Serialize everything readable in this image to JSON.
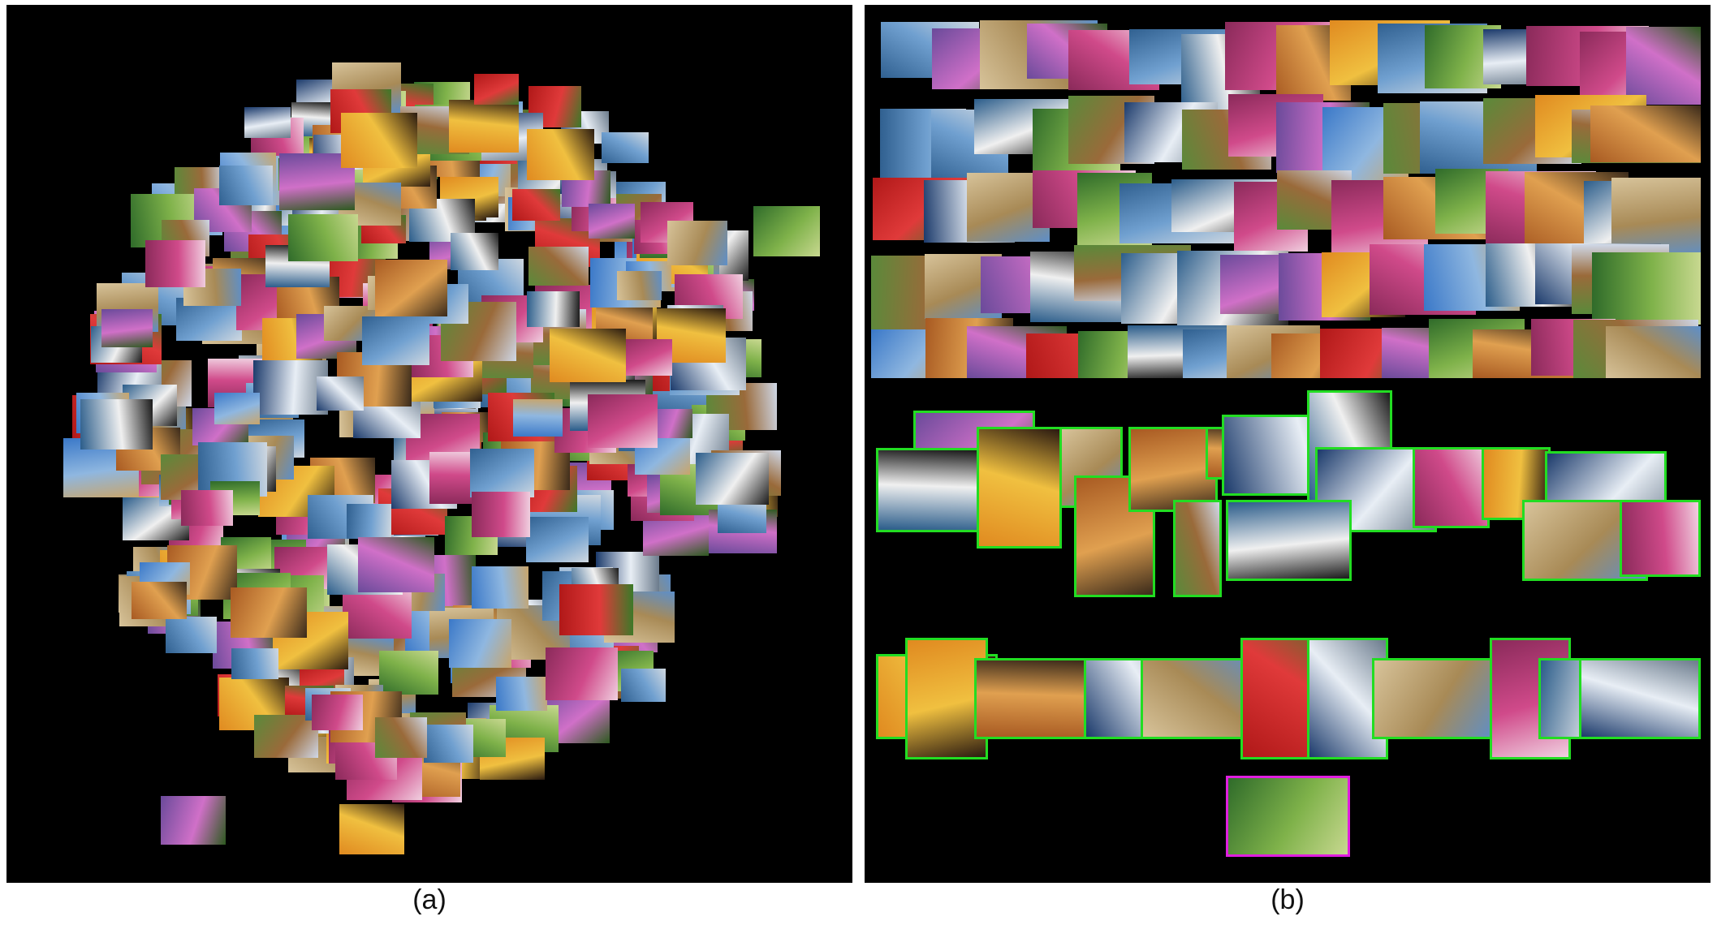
{
  "panels": [
    {
      "id": "a",
      "caption": "(a)",
      "description_role": "image-collage-overview"
    },
    {
      "id": "b",
      "caption": "(b)",
      "description_role": "image-collage-detail"
    }
  ],
  "colors": {
    "background": "#000000",
    "selection_green": "#22dd22",
    "selection_magenta": "#e01ee0"
  }
}
